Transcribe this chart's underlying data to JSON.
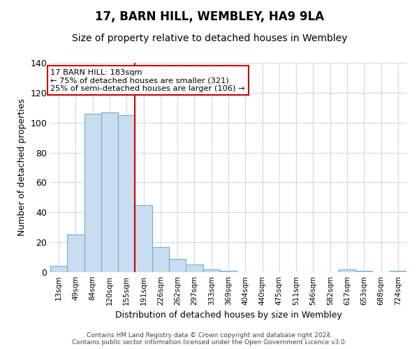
{
  "title": "17, BARN HILL, WEMBLEY, HA9 9LA",
  "subtitle": "Size of property relative to detached houses in Wembley",
  "xlabel": "Distribution of detached houses by size in Wembley",
  "ylabel": "Number of detached properties",
  "bar_labels": [
    "13sqm",
    "49sqm",
    "84sqm",
    "120sqm",
    "155sqm",
    "191sqm",
    "226sqm",
    "262sqm",
    "297sqm",
    "333sqm",
    "369sqm",
    "404sqm",
    "440sqm",
    "475sqm",
    "511sqm",
    "546sqm",
    "582sqm",
    "617sqm",
    "653sqm",
    "688sqm",
    "724sqm"
  ],
  "bar_values": [
    4,
    25,
    106,
    107,
    105,
    45,
    17,
    9,
    5,
    2,
    1,
    0,
    0,
    0,
    0,
    0,
    0,
    2,
    1,
    0,
    1
  ],
  "bar_color": "#c9ddf0",
  "bar_edge_color": "#6baed6",
  "vline_x": 5,
  "vline_color": "#cc0000",
  "ylim": [
    0,
    140
  ],
  "yticks": [
    0,
    20,
    40,
    60,
    80,
    100,
    120,
    140
  ],
  "annotation_title": "17 BARN HILL: 183sqm",
  "annotation_line1": "← 75% of detached houses are smaller (321)",
  "annotation_line2": "25% of semi-detached houses are larger (106) →",
  "footer1": "Contains HM Land Registry data © Crown copyright and database right 2024.",
  "footer2": "Contains public sector information licensed under the Open Government Licence v3.0.",
  "background_color": "#ffffff",
  "grid_color": "#d0d8e8"
}
